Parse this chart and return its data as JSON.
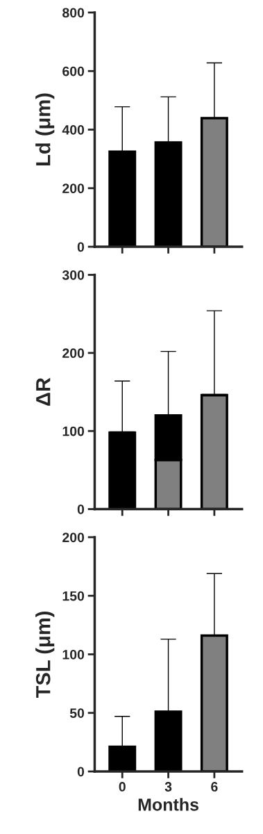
{
  "chart_data": [
    {
      "type": "bar",
      "ylabel": "Ld (μm)",
      "categories": [
        "0",
        "3",
        "6"
      ],
      "ylim": [
        0,
        800
      ],
      "yticks": [
        0,
        200,
        400,
        600,
        800
      ],
      "tick_labels": "y",
      "grid": false,
      "legend": false,
      "series": [
        {
          "values": [
            325,
            356,
            439
          ],
          "colors": [
            "#000000",
            "#000000",
            "#808080"
          ],
          "errors": [
            [
              325,
              478
            ],
            [
              356,
              512
            ],
            [
              439,
              628
            ]
          ]
        }
      ]
    },
    {
      "type": "bar",
      "ylabel": "ΔR",
      "categories": [
        "0",
        "3",
        "6"
      ],
      "ylim": [
        0,
        300
      ],
      "yticks": [
        0,
        100,
        200,
        300
      ],
      "tick_labels": "y",
      "grid": false,
      "legend": false,
      "stacked": true,
      "series": [
        {
          "values": [
            98,
            63,
            146
          ],
          "colors": [
            "#000000",
            "#808080",
            "#808080"
          ],
          "errors": [
            [
              98,
              164
            ],
            null,
            [
              146,
              254
            ]
          ]
        },
        {
          "values": [
            null,
            57,
            null
          ],
          "colors": [
            "#000000",
            "#000000",
            "#000000"
          ],
          "errors": [
            null,
            [
              120,
              202
            ],
            null
          ]
        }
      ]
    },
    {
      "type": "bar",
      "ylabel": "TSL (μm)",
      "xlabel": "Months",
      "categories": [
        "0",
        "3",
        "6"
      ],
      "ylim": [
        0,
        200
      ],
      "yticks": [
        0,
        50,
        100,
        150,
        200
      ],
      "grid": false,
      "legend": false,
      "series": [
        {
          "values": [
            21,
            51,
            116
          ],
          "colors": [
            "#000000",
            "#000000",
            "#808080"
          ],
          "errors": [
            [
              21,
              47
            ],
            [
              51,
              113
            ],
            [
              116,
              169
            ]
          ]
        }
      ]
    }
  ]
}
